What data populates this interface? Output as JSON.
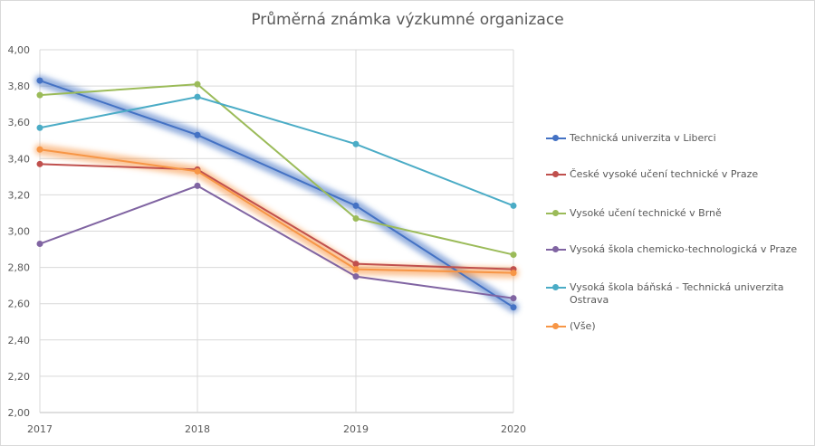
{
  "chart_data": {
    "type": "line",
    "title": "Průměrná známka výzkumné organizace",
    "categories": [
      "2017",
      "2018",
      "2019",
      "2020"
    ],
    "ylim": [
      2.0,
      4.0
    ],
    "yticks": [
      "2,00",
      "2,20",
      "2,40",
      "2,60",
      "2,80",
      "3,00",
      "3,20",
      "3,40",
      "3,60",
      "3,80",
      "4,00"
    ],
    "ytick_values": [
      2.0,
      2.2,
      2.4,
      2.6,
      2.8,
      3.0,
      3.2,
      3.4,
      3.6,
      3.8,
      4.0
    ],
    "grid": true,
    "legend_position": "right",
    "series": [
      {
        "name": "Technická univerzita v Liberci",
        "color": "#4472c4",
        "values": [
          3.83,
          3.53,
          3.14,
          2.58
        ],
        "highlighted": true
      },
      {
        "name": "České vysoké učení technické v Praze",
        "color": "#c0504d",
        "values": [
          3.37,
          3.34,
          2.82,
          2.79
        ],
        "highlighted": false
      },
      {
        "name": "Vysoké učení technické v Brně",
        "color": "#9bbb59",
        "values": [
          3.75,
          3.81,
          3.07,
          2.87
        ],
        "highlighted": false
      },
      {
        "name": "Vysoká škola chemicko-technologická v Praze",
        "color": "#8064a2",
        "values": [
          2.93,
          3.25,
          2.75,
          2.63
        ],
        "highlighted": false
      },
      {
        "name": "Vysoká škola báňská - Technická univerzita Ostrava",
        "color": "#4bacc6",
        "values": [
          3.57,
          3.74,
          3.48,
          3.14
        ],
        "highlighted": false
      },
      {
        "name": "(Vše)",
        "color": "#f79646",
        "values": [
          3.45,
          3.33,
          2.79,
          2.77
        ],
        "highlighted": true
      }
    ]
  }
}
